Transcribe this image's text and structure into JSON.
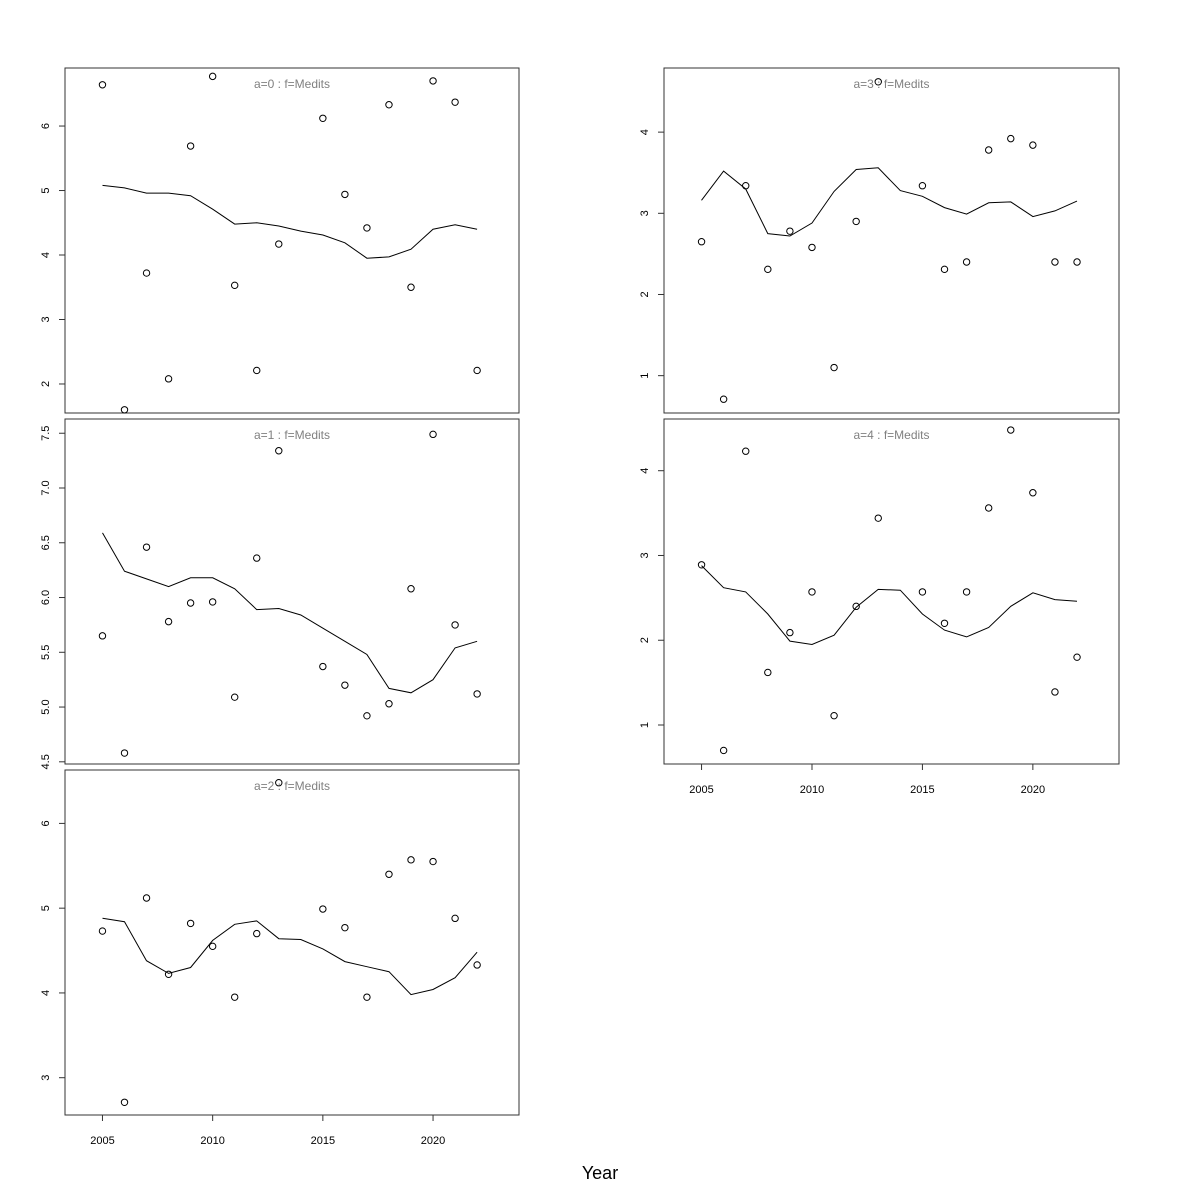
{
  "xlabel": "Year",
  "chart_data": [
    {
      "type": "scatter",
      "title": "a=0  :  f=Medits",
      "xlim": [
        2003.3,
        2023.9
      ],
      "ylim": [
        1.55,
        6.9
      ],
      "xticks": [],
      "yticks": [
        2,
        3,
        4,
        5,
        6
      ],
      "series": [
        {
          "kind": "line",
          "x": [
            2005,
            2006,
            2007,
            2008,
            2009,
            2010,
            2011,
            2012,
            2013,
            2014,
            2015,
            2016,
            2017,
            2018,
            2019,
            2020,
            2021,
            2022
          ],
          "y": [
            5.08,
            5.04,
            4.96,
            4.96,
            4.92,
            4.71,
            4.48,
            4.5,
            4.45,
            4.37,
            4.31,
            4.19,
            3.95,
            3.97,
            4.09,
            4.4,
            4.47,
            4.4
          ]
        },
        {
          "kind": "points",
          "x": [
            2005,
            2006,
            2007,
            2008,
            2009,
            2010,
            2011,
            2012,
            2013,
            2015,
            2016,
            2017,
            2018,
            2019,
            2020,
            2021,
            2022
          ],
          "y": [
            6.64,
            1.6,
            3.72,
            2.08,
            5.69,
            6.77,
            3.53,
            2.21,
            4.17,
            6.12,
            4.94,
            4.42,
            6.33,
            3.5,
            6.7,
            6.37,
            2.21
          ]
        }
      ]
    },
    {
      "type": "scatter",
      "title": "a=1  :  f=Medits",
      "xlim": [
        2003.3,
        2023.9
      ],
      "ylim": [
        4.48,
        7.63
      ],
      "xticks": [],
      "yticks": [
        4.5,
        5.0,
        5.5,
        6.0,
        6.5,
        7.0,
        7.5
      ],
      "yticklabels": [
        "4.5",
        "5.0",
        "5.5",
        "6.0",
        "6.5",
        "7.0",
        "7.5"
      ],
      "series": [
        {
          "kind": "line",
          "x": [
            2005,
            2006,
            2007,
            2008,
            2009,
            2010,
            2011,
            2012,
            2013,
            2014,
            2015,
            2016,
            2017,
            2018,
            2019,
            2020,
            2021,
            2022
          ],
          "y": [
            6.59,
            6.24,
            6.17,
            6.1,
            6.18,
            6.18,
            6.08,
            5.89,
            5.9,
            5.84,
            5.72,
            5.6,
            5.48,
            5.17,
            5.13,
            5.25,
            5.54,
            5.6
          ]
        },
        {
          "kind": "points",
          "x": [
            2005,
            2006,
            2007,
            2008,
            2009,
            2010,
            2011,
            2012,
            2013,
            2015,
            2016,
            2017,
            2018,
            2019,
            2020,
            2021,
            2022
          ],
          "y": [
            5.65,
            4.58,
            6.46,
            5.78,
            5.95,
            5.96,
            5.09,
            6.36,
            7.34,
            5.37,
            5.2,
            4.92,
            5.03,
            6.08,
            7.49,
            5.75,
            5.12
          ]
        }
      ]
    },
    {
      "type": "scatter",
      "title": "a=2  :  f=Medits",
      "xlim": [
        2003.3,
        2023.9
      ],
      "ylim": [
        2.56,
        6.63
      ],
      "xticks": [
        2005,
        2010,
        2015,
        2020
      ],
      "yticks": [
        3,
        4,
        5,
        6
      ],
      "series": [
        {
          "kind": "line",
          "x": [
            2005,
            2006,
            2007,
            2008,
            2009,
            2010,
            2011,
            2012,
            2013,
            2014,
            2015,
            2016,
            2017,
            2018,
            2019,
            2020,
            2021,
            2022
          ],
          "y": [
            4.88,
            4.84,
            4.38,
            4.23,
            4.3,
            4.62,
            4.81,
            4.85,
            4.64,
            4.63,
            4.52,
            4.37,
            4.31,
            4.25,
            3.98,
            4.04,
            4.18,
            4.48
          ]
        },
        {
          "kind": "points",
          "x": [
            2005,
            2006,
            2007,
            2008,
            2009,
            2010,
            2011,
            2012,
            2013,
            2015,
            2016,
            2017,
            2018,
            2019,
            2020,
            2021,
            2022
          ],
          "y": [
            4.73,
            2.71,
            5.12,
            4.22,
            4.82,
            4.55,
            3.95,
            4.7,
            6.48,
            4.99,
            4.77,
            3.95,
            5.4,
            5.57,
            5.55,
            4.88,
            4.33
          ]
        }
      ]
    },
    {
      "type": "scatter",
      "title": "a=3  :  f=Medits",
      "xlim": [
        2003.3,
        2023.9
      ],
      "ylim": [
        0.54,
        4.79
      ],
      "xticks": [],
      "yticks": [
        1,
        2,
        3,
        4
      ],
      "series": [
        {
          "kind": "line",
          "x": [
            2005,
            2006,
            2007,
            2008,
            2009,
            2010,
            2011,
            2012,
            2013,
            2014,
            2015,
            2016,
            2017,
            2018,
            2019,
            2020,
            2021,
            2022
          ],
          "y": [
            3.16,
            3.52,
            3.3,
            2.75,
            2.72,
            2.88,
            3.27,
            3.54,
            3.56,
            3.28,
            3.21,
            3.07,
            2.99,
            3.13,
            3.14,
            2.96,
            3.03,
            3.15
          ]
        },
        {
          "kind": "points",
          "x": [
            2005,
            2006,
            2007,
            2008,
            2009,
            2010,
            2011,
            2012,
            2013,
            2015,
            2016,
            2017,
            2018,
            2019,
            2020,
            2021,
            2022
          ],
          "y": [
            2.65,
            0.71,
            3.34,
            2.31,
            2.78,
            2.58,
            1.1,
            2.9,
            4.62,
            3.34,
            2.31,
            2.4,
            3.78,
            3.92,
            3.84,
            2.4,
            2.4
          ]
        }
      ]
    },
    {
      "type": "scatter",
      "title": "a=4  :  f=Medits",
      "xlim": [
        2003.3,
        2023.9
      ],
      "ylim": [
        0.54,
        4.61
      ],
      "xticks": [
        2005,
        2010,
        2015,
        2020
      ],
      "yticks": [
        1,
        2,
        3,
        4
      ],
      "series": [
        {
          "kind": "line",
          "x": [
            2005,
            2006,
            2007,
            2008,
            2009,
            2010,
            2011,
            2012,
            2013,
            2014,
            2015,
            2016,
            2017,
            2018,
            2019,
            2020,
            2021,
            2022
          ],
          "y": [
            2.88,
            2.62,
            2.57,
            2.31,
            1.99,
            1.95,
            2.06,
            2.39,
            2.6,
            2.59,
            2.31,
            2.12,
            2.04,
            2.15,
            2.4,
            2.56,
            2.48,
            2.46
          ]
        },
        {
          "kind": "points",
          "x": [
            2005,
            2006,
            2007,
            2008,
            2009,
            2010,
            2011,
            2012,
            2013,
            2015,
            2016,
            2017,
            2018,
            2019,
            2020,
            2021,
            2022
          ],
          "y": [
            2.89,
            0.7,
            4.23,
            1.62,
            2.09,
            2.57,
            1.11,
            2.4,
            3.44,
            2.57,
            2.2,
            2.57,
            3.56,
            4.48,
            3.74,
            1.39,
            1.8
          ]
        }
      ]
    }
  ]
}
